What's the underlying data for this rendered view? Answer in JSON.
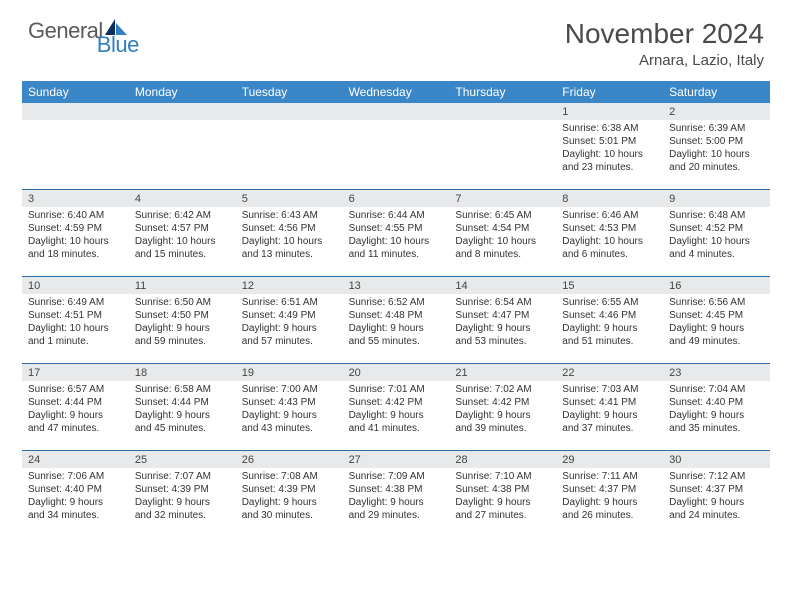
{
  "brand": {
    "word1": "General",
    "word2": "Blue",
    "logo_fill_dark": "#0b2f5e",
    "logo_fill_light": "#2f7fc1"
  },
  "title": {
    "month": "November 2024",
    "location": "Arnara, Lazio, Italy"
  },
  "colors": {
    "header_bg": "#3b86c6",
    "header_text": "#ffffff",
    "daynum_bg": "#e7e9eb",
    "week_border": "#2f6da8",
    "text": "#333333"
  },
  "dayNames": [
    "Sunday",
    "Monday",
    "Tuesday",
    "Wednesday",
    "Thursday",
    "Friday",
    "Saturday"
  ],
  "weeks": [
    [
      {
        "empty": true
      },
      {
        "empty": true
      },
      {
        "empty": true
      },
      {
        "empty": true
      },
      {
        "empty": true
      },
      {
        "day": "1",
        "sunrise": "Sunrise: 6:38 AM",
        "sunset": "Sunset: 5:01 PM",
        "dl1": "Daylight: 10 hours",
        "dl2": "and 23 minutes."
      },
      {
        "day": "2",
        "sunrise": "Sunrise: 6:39 AM",
        "sunset": "Sunset: 5:00 PM",
        "dl1": "Daylight: 10 hours",
        "dl2": "and 20 minutes."
      }
    ],
    [
      {
        "day": "3",
        "sunrise": "Sunrise: 6:40 AM",
        "sunset": "Sunset: 4:59 PM",
        "dl1": "Daylight: 10 hours",
        "dl2": "and 18 minutes."
      },
      {
        "day": "4",
        "sunrise": "Sunrise: 6:42 AM",
        "sunset": "Sunset: 4:57 PM",
        "dl1": "Daylight: 10 hours",
        "dl2": "and 15 minutes."
      },
      {
        "day": "5",
        "sunrise": "Sunrise: 6:43 AM",
        "sunset": "Sunset: 4:56 PM",
        "dl1": "Daylight: 10 hours",
        "dl2": "and 13 minutes."
      },
      {
        "day": "6",
        "sunrise": "Sunrise: 6:44 AM",
        "sunset": "Sunset: 4:55 PM",
        "dl1": "Daylight: 10 hours",
        "dl2": "and 11 minutes."
      },
      {
        "day": "7",
        "sunrise": "Sunrise: 6:45 AM",
        "sunset": "Sunset: 4:54 PM",
        "dl1": "Daylight: 10 hours",
        "dl2": "and 8 minutes."
      },
      {
        "day": "8",
        "sunrise": "Sunrise: 6:46 AM",
        "sunset": "Sunset: 4:53 PM",
        "dl1": "Daylight: 10 hours",
        "dl2": "and 6 minutes."
      },
      {
        "day": "9",
        "sunrise": "Sunrise: 6:48 AM",
        "sunset": "Sunset: 4:52 PM",
        "dl1": "Daylight: 10 hours",
        "dl2": "and 4 minutes."
      }
    ],
    [
      {
        "day": "10",
        "sunrise": "Sunrise: 6:49 AM",
        "sunset": "Sunset: 4:51 PM",
        "dl1": "Daylight: 10 hours",
        "dl2": "and 1 minute."
      },
      {
        "day": "11",
        "sunrise": "Sunrise: 6:50 AM",
        "sunset": "Sunset: 4:50 PM",
        "dl1": "Daylight: 9 hours",
        "dl2": "and 59 minutes."
      },
      {
        "day": "12",
        "sunrise": "Sunrise: 6:51 AM",
        "sunset": "Sunset: 4:49 PM",
        "dl1": "Daylight: 9 hours",
        "dl2": "and 57 minutes."
      },
      {
        "day": "13",
        "sunrise": "Sunrise: 6:52 AM",
        "sunset": "Sunset: 4:48 PM",
        "dl1": "Daylight: 9 hours",
        "dl2": "and 55 minutes."
      },
      {
        "day": "14",
        "sunrise": "Sunrise: 6:54 AM",
        "sunset": "Sunset: 4:47 PM",
        "dl1": "Daylight: 9 hours",
        "dl2": "and 53 minutes."
      },
      {
        "day": "15",
        "sunrise": "Sunrise: 6:55 AM",
        "sunset": "Sunset: 4:46 PM",
        "dl1": "Daylight: 9 hours",
        "dl2": "and 51 minutes."
      },
      {
        "day": "16",
        "sunrise": "Sunrise: 6:56 AM",
        "sunset": "Sunset: 4:45 PM",
        "dl1": "Daylight: 9 hours",
        "dl2": "and 49 minutes."
      }
    ],
    [
      {
        "day": "17",
        "sunrise": "Sunrise: 6:57 AM",
        "sunset": "Sunset: 4:44 PM",
        "dl1": "Daylight: 9 hours",
        "dl2": "and 47 minutes."
      },
      {
        "day": "18",
        "sunrise": "Sunrise: 6:58 AM",
        "sunset": "Sunset: 4:44 PM",
        "dl1": "Daylight: 9 hours",
        "dl2": "and 45 minutes."
      },
      {
        "day": "19",
        "sunrise": "Sunrise: 7:00 AM",
        "sunset": "Sunset: 4:43 PM",
        "dl1": "Daylight: 9 hours",
        "dl2": "and 43 minutes."
      },
      {
        "day": "20",
        "sunrise": "Sunrise: 7:01 AM",
        "sunset": "Sunset: 4:42 PM",
        "dl1": "Daylight: 9 hours",
        "dl2": "and 41 minutes."
      },
      {
        "day": "21",
        "sunrise": "Sunrise: 7:02 AM",
        "sunset": "Sunset: 4:42 PM",
        "dl1": "Daylight: 9 hours",
        "dl2": "and 39 minutes."
      },
      {
        "day": "22",
        "sunrise": "Sunrise: 7:03 AM",
        "sunset": "Sunset: 4:41 PM",
        "dl1": "Daylight: 9 hours",
        "dl2": "and 37 minutes."
      },
      {
        "day": "23",
        "sunrise": "Sunrise: 7:04 AM",
        "sunset": "Sunset: 4:40 PM",
        "dl1": "Daylight: 9 hours",
        "dl2": "and 35 minutes."
      }
    ],
    [
      {
        "day": "24",
        "sunrise": "Sunrise: 7:06 AM",
        "sunset": "Sunset: 4:40 PM",
        "dl1": "Daylight: 9 hours",
        "dl2": "and 34 minutes."
      },
      {
        "day": "25",
        "sunrise": "Sunrise: 7:07 AM",
        "sunset": "Sunset: 4:39 PM",
        "dl1": "Daylight: 9 hours",
        "dl2": "and 32 minutes."
      },
      {
        "day": "26",
        "sunrise": "Sunrise: 7:08 AM",
        "sunset": "Sunset: 4:39 PM",
        "dl1": "Daylight: 9 hours",
        "dl2": "and 30 minutes."
      },
      {
        "day": "27",
        "sunrise": "Sunrise: 7:09 AM",
        "sunset": "Sunset: 4:38 PM",
        "dl1": "Daylight: 9 hours",
        "dl2": "and 29 minutes."
      },
      {
        "day": "28",
        "sunrise": "Sunrise: 7:10 AM",
        "sunset": "Sunset: 4:38 PM",
        "dl1": "Daylight: 9 hours",
        "dl2": "and 27 minutes."
      },
      {
        "day": "29",
        "sunrise": "Sunrise: 7:11 AM",
        "sunset": "Sunset: 4:37 PM",
        "dl1": "Daylight: 9 hours",
        "dl2": "and 26 minutes."
      },
      {
        "day": "30",
        "sunrise": "Sunrise: 7:12 AM",
        "sunset": "Sunset: 4:37 PM",
        "dl1": "Daylight: 9 hours",
        "dl2": "and 24 minutes."
      }
    ]
  ]
}
